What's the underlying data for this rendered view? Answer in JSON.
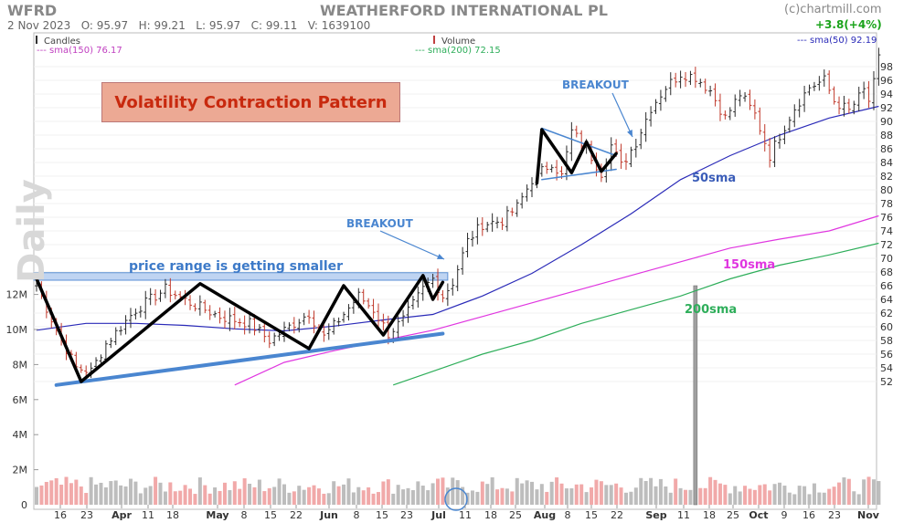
{
  "header": {
    "ticker": "WFRD",
    "company": "WEATHERFORD INTERNATIONAL PL",
    "copyright": "(c)chartmill.com",
    "date": "2 Nov 2023",
    "open": "O: 95.97",
    "high": "H: 99.21",
    "low": "L: 95.97",
    "close": "C: 99.11",
    "volume": "V: 1639100",
    "change": "+3.8(+4%)"
  },
  "legend": {
    "candles": "Candles",
    "sma150": "--- sma(150) 76.17",
    "volume": "Volume",
    "sma200": "--- sma(200) 72.15",
    "sma50": "--- sma(50) 92.19"
  },
  "watermark": "Daily",
  "annotations": {
    "pattern_title": "Volatility Contraction Pattern",
    "range_note": "price range is getting smaller",
    "breakout1": "BREAKOUT",
    "breakout2": "BREAKOUT",
    "sma50_label": "50sma",
    "sma150_label": "150sma",
    "sma200_label": "200sma"
  },
  "colors": {
    "up": "#2a2a2a",
    "down": "#c0392b",
    "sma50": "#2a2ab8",
    "sma150": "#e036e0",
    "sma200": "#2eae5a",
    "trendline": "#4a86d0",
    "zigzag": "#000000",
    "band": "#a9c6ee"
  },
  "chart_data": {
    "type": "line",
    "title": "WEATHERFORD INTERNATIONAL PL",
    "price_axis": {
      "ticks": [
        52,
        54,
        56,
        58,
        60,
        62,
        64,
        66,
        68,
        70,
        72,
        74,
        76,
        78,
        80,
        82,
        84,
        86,
        88,
        90,
        92,
        94,
        96,
        98
      ],
      "range": [
        50,
        99.5
      ]
    },
    "volume_axis": {
      "ticks": [
        "0",
        "2M",
        "4M",
        "6M",
        "8M",
        "10M",
        "12M"
      ],
      "max": 14
    },
    "x_labels": [
      "16",
      "23",
      "Apr",
      "11",
      "18",
      "May",
      "8",
      "15",
      "22",
      "Jun",
      "8",
      "15",
      "23",
      "Jul",
      "11",
      "18",
      "25",
      "Aug",
      "8",
      "15",
      "22",
      "Sep",
      "11",
      "18",
      "25",
      "Oct",
      "9",
      "16",
      "23",
      "Nov"
    ],
    "close_anchors": [
      {
        "d": 0,
        "c": 66.0
      },
      {
        "d": 4,
        "c": 59.5
      },
      {
        "d": 8,
        "c": 54.0
      },
      {
        "d": 11,
        "c": 53.5
      },
      {
        "d": 14,
        "c": 57.5
      },
      {
        "d": 20,
        "c": 62.5
      },
      {
        "d": 26,
        "c": 65.5
      },
      {
        "d": 31,
        "c": 63.5
      },
      {
        "d": 37,
        "c": 61.5
      },
      {
        "d": 43,
        "c": 60.5
      },
      {
        "d": 47,
        "c": 58.0
      },
      {
        "d": 51,
        "c": 60.0
      },
      {
        "d": 55,
        "c": 62.0
      },
      {
        "d": 58,
        "c": 58.5
      },
      {
        "d": 61,
        "c": 61.0
      },
      {
        "d": 65,
        "c": 64.5
      },
      {
        "d": 68,
        "c": 62.5
      },
      {
        "d": 71,
        "c": 59.0
      },
      {
        "d": 74,
        "c": 61.0
      },
      {
        "d": 78,
        "c": 65.5
      },
      {
        "d": 80,
        "c": 67.0
      },
      {
        "d": 82,
        "c": 64.5
      },
      {
        "d": 84,
        "c": 66.5
      },
      {
        "d": 87,
        "c": 72.5
      },
      {
        "d": 90,
        "c": 75.0
      },
      {
        "d": 94,
        "c": 75.5
      },
      {
        "d": 97,
        "c": 77.5
      },
      {
        "d": 100,
        "c": 81.5
      },
      {
        "d": 104,
        "c": 84.0
      },
      {
        "d": 106,
        "c": 82.0
      },
      {
        "d": 108,
        "c": 88.5
      },
      {
        "d": 111,
        "c": 86.0
      },
      {
        "d": 114,
        "c": 82.5
      },
      {
        "d": 116,
        "c": 86.5
      },
      {
        "d": 118,
        "c": 83.5
      },
      {
        "d": 121,
        "c": 87.0
      },
      {
        "d": 124,
        "c": 92.0
      },
      {
        "d": 127,
        "c": 95.0
      },
      {
        "d": 130,
        "c": 97.0
      },
      {
        "d": 133,
        "c": 96.5
      },
      {
        "d": 136,
        "c": 94.5
      },
      {
        "d": 139,
        "c": 90.5
      },
      {
        "d": 142,
        "c": 94.0
      },
      {
        "d": 145,
        "c": 91.0
      },
      {
        "d": 148,
        "c": 85.0
      },
      {
        "d": 150,
        "c": 88.0
      },
      {
        "d": 153,
        "c": 92.0
      },
      {
        "d": 156,
        "c": 95.0
      },
      {
        "d": 159,
        "c": 96.0
      },
      {
        "d": 161,
        "c": 93.0
      },
      {
        "d": 164,
        "c": 91.5
      },
      {
        "d": 167,
        "c": 94.5
      },
      {
        "d": 168,
        "c": 93.0
      },
      {
        "d": 169,
        "c": 95.5
      },
      {
        "d": 170,
        "c": 99.1
      }
    ],
    "series": [
      {
        "name": "sma(50)",
        "values": [
          [
            0,
            59.5
          ],
          [
            10,
            60.5
          ],
          [
            20,
            60.5
          ],
          [
            30,
            60.2
          ],
          [
            40,
            59.7
          ],
          [
            50,
            59.4
          ],
          [
            60,
            60.1
          ],
          [
            70,
            61.0
          ],
          [
            80,
            61.8
          ],
          [
            90,
            64.5
          ],
          [
            100,
            67.8
          ],
          [
            110,
            72.0
          ],
          [
            120,
            76.5
          ],
          [
            130,
            81.5
          ],
          [
            140,
            85.0
          ],
          [
            150,
            88.0
          ],
          [
            160,
            90.5
          ],
          [
            170,
            92.2
          ]
        ]
      },
      {
        "name": "sma(150)",
        "values": [
          [
            40,
            51.5
          ],
          [
            50,
            54.8
          ],
          [
            60,
            56.5
          ],
          [
            70,
            58.0
          ],
          [
            80,
            59.5
          ],
          [
            90,
            61.5
          ],
          [
            100,
            63.5
          ],
          [
            110,
            65.5
          ],
          [
            120,
            67.5
          ],
          [
            130,
            69.5
          ],
          [
            140,
            71.5
          ],
          [
            150,
            72.8
          ],
          [
            160,
            74.0
          ],
          [
            170,
            76.2
          ]
        ]
      },
      {
        "name": "sma(200)",
        "values": [
          [
            72,
            51.5
          ],
          [
            80,
            53.5
          ],
          [
            90,
            56.0
          ],
          [
            100,
            58.0
          ],
          [
            110,
            60.5
          ],
          [
            120,
            62.5
          ],
          [
            130,
            64.5
          ],
          [
            140,
            67.0
          ],
          [
            150,
            69.0
          ],
          [
            160,
            70.5
          ],
          [
            170,
            72.2
          ]
        ]
      }
    ],
    "range_band": [
      66.8,
      67.9
    ],
    "zigzag_1": [
      [
        0,
        67
      ],
      [
        9,
        52
      ],
      [
        33,
        66.3
      ],
      [
        55,
        56.8
      ],
      [
        62,
        66
      ],
      [
        70,
        58.8
      ],
      [
        78,
        67.5
      ],
      [
        80,
        64
      ],
      [
        82,
        66.5
      ]
    ],
    "zigzag_2": [
      [
        101,
        81
      ],
      [
        102,
        88.8
      ],
      [
        108,
        82.5
      ],
      [
        111,
        87
      ],
      [
        114,
        82.7
      ],
      [
        117,
        85.3
      ]
    ],
    "base_trendline": [
      [
        4,
        51.5
      ],
      [
        82,
        59
      ]
    ],
    "triangle_upper": [
      [
        102,
        89
      ],
      [
        117,
        85
      ]
    ],
    "triangle_lower": [
      [
        102,
        81.5
      ],
      [
        117,
        83
      ]
    ],
    "volume_spike": {
      "d": 133,
      "v": 12.5
    }
  }
}
